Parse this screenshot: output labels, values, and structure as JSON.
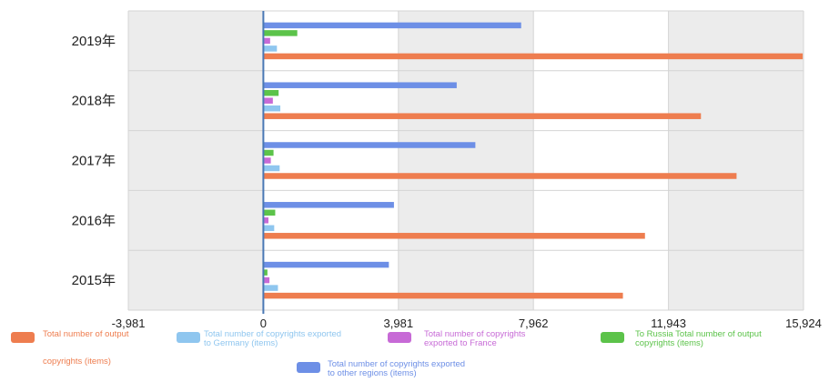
{
  "chart_data": {
    "type": "bar",
    "orientation": "horizontal",
    "categories": [
      "2019年",
      "2018年",
      "2017年",
      "2016年",
      "2015年"
    ],
    "series": [
      {
        "name": "Total number of copyrights exported to other regions (items)",
        "color": "#6d8fe6",
        "values": [
          7600,
          5700,
          6250,
          3850,
          3700
        ]
      },
      {
        "name": "To Russia Total number of output copyrights (items)",
        "color": "#5cc34a",
        "values": [
          1000,
          450,
          300,
          350,
          120
        ]
      },
      {
        "name": "Total number of copyrights exported to France",
        "color": "#c76ad6",
        "values": [
          200,
          280,
          220,
          150,
          180
        ]
      },
      {
        "name": "Total number of copyrights exported to Germany (items)",
        "color": "#8fc6ef",
        "values": [
          400,
          500,
          480,
          320,
          430
        ]
      },
      {
        "name": "Total number of output copyrights (items)",
        "color": "#ee7d4f",
        "values": [
          15900,
          12900,
          13950,
          11250,
          10600
        ]
      }
    ],
    "xlim": [
      -3981,
      15924
    ],
    "x_ticks": [
      -3981,
      0,
      3981,
      7962,
      11943,
      15924
    ],
    "x_tick_labels": [
      "-3,981",
      "0",
      "3,981",
      "7,962",
      "11,943",
      "15,924"
    ],
    "grid": true,
    "legend_position": "bottom",
    "title": "",
    "xlabel": "",
    "ylabel": ""
  },
  "legend": [
    {
      "label_lines": [
        "Total number of output",
        "copyrights (items)"
      ],
      "color": "#ee7d4f"
    },
    {
      "label_lines": [
        "Total number of copyrights exported",
        "to Germany (items)"
      ],
      "color": "#8fc6ef"
    },
    {
      "label_lines": [
        "Total number of copyrights",
        "exported to France"
      ],
      "color": "#c76ad6"
    },
    {
      "label_lines": [
        "To Russia Total number of output",
        "copyrights (items)"
      ],
      "color": "#5cc34a"
    },
    {
      "label_lines": [
        "Total number of copyrights exported",
        "to other regions (items)"
      ],
      "color": "#6d8fe6"
    }
  ]
}
